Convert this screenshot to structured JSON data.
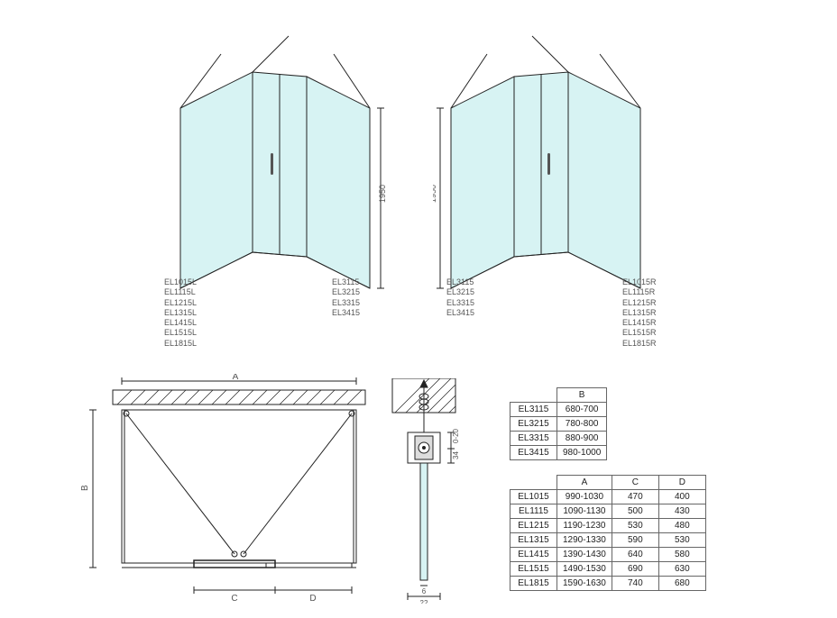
{
  "iso_height": "1950",
  "glass_fill": "#d7f3f3",
  "line": "#222222",
  "left_model_codes": [
    "EL1015L",
    "EL1115L",
    "EL1215L",
    "EL1315L",
    "EL1415L",
    "EL1515L",
    "EL1815L"
  ],
  "side_codes": [
    "EL3115",
    "EL3215",
    "EL3315",
    "EL3415"
  ],
  "right_model_codes": [
    "EL1015R",
    "EL1115R",
    "EL1215R",
    "EL1315R",
    "EL1415R",
    "EL1515R",
    "EL1815R"
  ],
  "tableB": {
    "header": [
      "",
      "B"
    ],
    "rows": [
      [
        "EL3115",
        "680-700"
      ],
      [
        "EL3215",
        "780-800"
      ],
      [
        "EL3315",
        "880-900"
      ],
      [
        "EL3415",
        "980-1000"
      ]
    ]
  },
  "tableACD": {
    "header": [
      "",
      "A",
      "C",
      "D"
    ],
    "rows": [
      [
        "EL1015",
        "990-1030",
        "470",
        "400"
      ],
      [
        "EL1115",
        "1090-1130",
        "500",
        "430"
      ],
      [
        "EL1215",
        "1190-1230",
        "530",
        "480"
      ],
      [
        "EL1315",
        "1290-1330",
        "590",
        "530"
      ],
      [
        "EL1415",
        "1390-1430",
        "640",
        "580"
      ],
      [
        "EL1515",
        "1490-1530",
        "690",
        "630"
      ],
      [
        "EL1815",
        "1590-1630",
        "740",
        "680"
      ]
    ]
  },
  "plan": {
    "A": "A",
    "B": "B",
    "C": "C",
    "D": "D"
  },
  "detail": {
    "w": "6",
    "outer": "22",
    "h1": "0-20",
    "h2": "34"
  }
}
